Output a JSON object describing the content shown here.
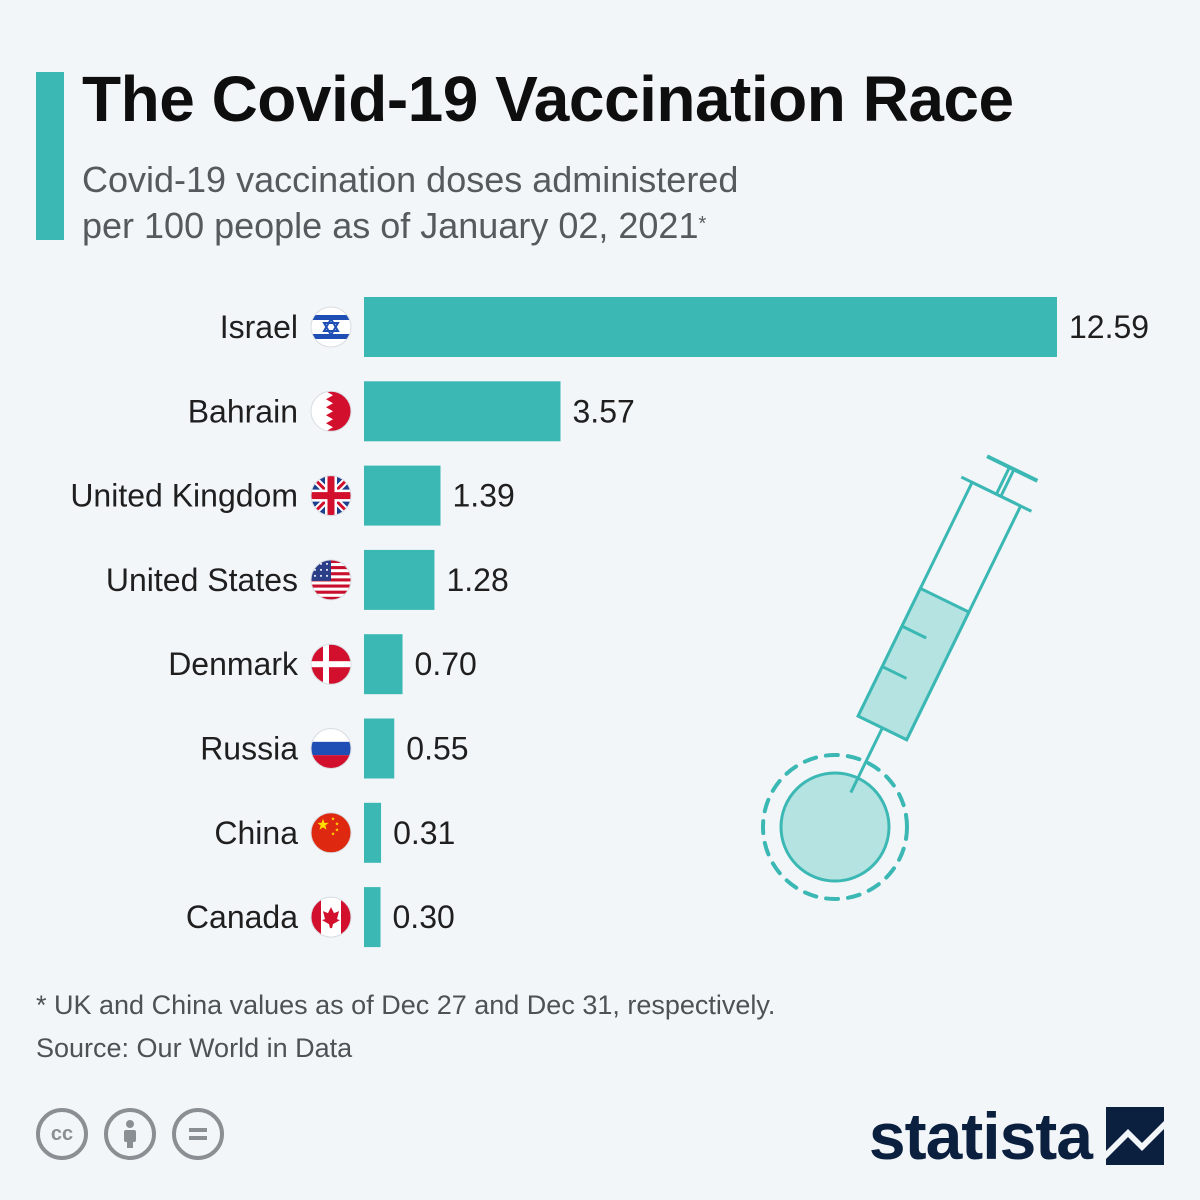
{
  "header": {
    "title": "The Covid-19 Vaccination Race",
    "subtitle_line1": "Covid-19 vaccination doses administered",
    "subtitle_line2": "per 100 people as of January 02, 2021",
    "subtitle_marker": "*"
  },
  "chart_data": {
    "type": "bar",
    "orientation": "horizontal",
    "categories": [
      "Israel",
      "Bahrain",
      "United Kingdom",
      "United States",
      "Denmark",
      "Russia",
      "China",
      "Canada"
    ],
    "values": [
      12.59,
      3.57,
      1.39,
      1.28,
      0.7,
      0.55,
      0.31,
      0.3
    ],
    "value_labels": [
      "12.59",
      "3.57",
      "1.39",
      "1.28",
      "0.70",
      "0.55",
      "0.31",
      "0.30"
    ],
    "flags": [
      "israel-flag-icon",
      "bahrain-flag-icon",
      "uk-flag-icon",
      "us-flag-icon",
      "denmark-flag-icon",
      "russia-flag-icon",
      "china-flag-icon",
      "canada-flag-icon"
    ],
    "xlim": [
      0,
      12.59
    ],
    "bar_color": "#3cb8b4",
    "grid": false
  },
  "footer": {
    "footnote": "* UK and China values as of Dec 27 and Dec 31, respectively.",
    "source": "Source: Our World in Data",
    "license_icons": [
      "creative-commons-icon",
      "attribution-icon",
      "no-derivatives-icon"
    ],
    "brand": "statista"
  },
  "colors": {
    "accent": "#3cb8b4",
    "background": "#f3f6f9",
    "brand": "#0b1f3e"
  }
}
